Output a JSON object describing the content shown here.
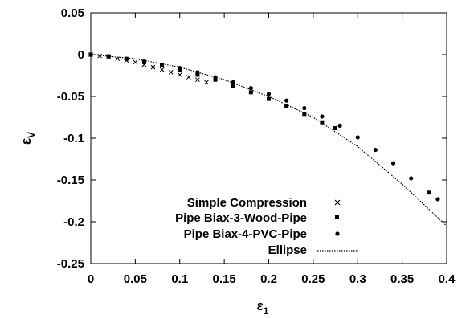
{
  "chart_data": {
    "type": "scatter",
    "xlabel_main": "ε",
    "xlabel_sub": "1",
    "ylabel_main": "ε",
    "ylabel_sub": "V",
    "xlim": [
      0,
      0.4
    ],
    "ylim": [
      -0.25,
      0.05
    ],
    "xticks": [
      "0",
      "0.05",
      "0.1",
      "0.15",
      "0.2",
      "0.25",
      "0.3",
      "0.35",
      "0.4"
    ],
    "yticks": [
      "0.05",
      "0",
      "-0.05",
      "-0.1",
      "-0.15",
      "-0.2",
      "-0.25"
    ],
    "grid": false,
    "legend_position": "bottom-center",
    "series": [
      {
        "name": "Simple Compression",
        "marker": "cross",
        "x": [
          0.0,
          0.01,
          0.02,
          0.03,
          0.04,
          0.05,
          0.06,
          0.07,
          0.08,
          0.09,
          0.1,
          0.11,
          0.12,
          0.13
        ],
        "y": [
          0.0,
          -0.0015,
          -0.003,
          -0.005,
          -0.007,
          -0.009,
          -0.012,
          -0.015,
          -0.018,
          -0.021,
          -0.024,
          -0.027,
          -0.03,
          -0.033
        ]
      },
      {
        "name": "Pipe Biax-3-Wood-Pipe",
        "marker": "square",
        "x": [
          0.0,
          0.02,
          0.04,
          0.06,
          0.08,
          0.1,
          0.12,
          0.14,
          0.16,
          0.18,
          0.2,
          0.22,
          0.24,
          0.26,
          0.275
        ],
        "y": [
          0.0,
          -0.002,
          -0.005,
          -0.009,
          -0.013,
          -0.018,
          -0.024,
          -0.03,
          -0.037,
          -0.045,
          -0.053,
          -0.062,
          -0.071,
          -0.081,
          -0.088
        ]
      },
      {
        "name": "Pipe Biax-4-PVC-Pipe",
        "marker": "dot",
        "x": [
          0.0,
          0.02,
          0.04,
          0.06,
          0.08,
          0.1,
          0.12,
          0.14,
          0.16,
          0.18,
          0.2,
          0.22,
          0.24,
          0.26,
          0.28,
          0.3,
          0.32,
          0.34,
          0.36,
          0.38,
          0.39
        ],
        "y": [
          0.0,
          -0.002,
          -0.005,
          -0.008,
          -0.012,
          -0.016,
          -0.021,
          -0.027,
          -0.033,
          -0.04,
          -0.047,
          -0.055,
          -0.064,
          -0.074,
          -0.085,
          -0.099,
          -0.114,
          -0.13,
          -0.148,
          -0.165,
          -0.173
        ]
      },
      {
        "name": "Ellipse",
        "marker": "dotted-line",
        "x": [
          0.0,
          0.05,
          0.1,
          0.15,
          0.2,
          0.25,
          0.3,
          0.35,
          0.4
        ],
        "y": [
          0.0,
          -0.005,
          -0.015,
          -0.03,
          -0.05,
          -0.075,
          -0.11,
          -0.155,
          -0.205
        ]
      }
    ]
  }
}
